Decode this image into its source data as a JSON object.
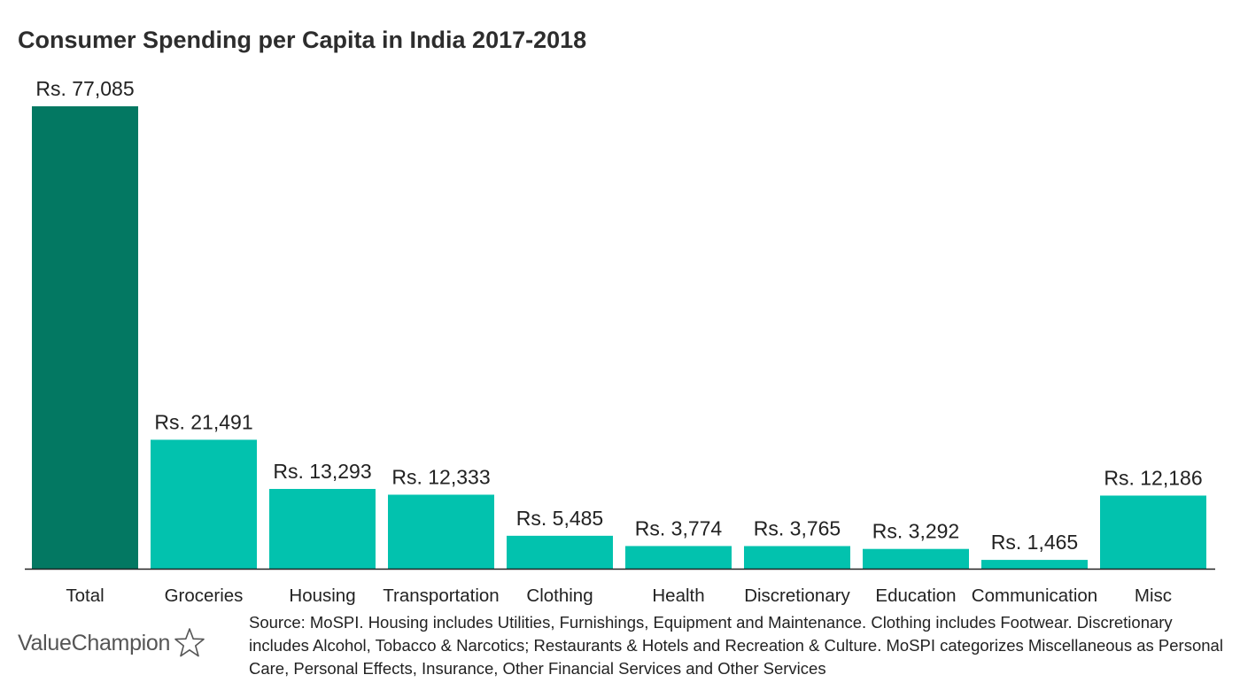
{
  "title": "Consumer Spending per Capita in India 2017-2018",
  "source_text": "Source: MoSPI. Housing includes Utilities, Furnishings, Equipment and Maintenance. Clothing includes Footwear. Discretionary includes Alcohol, Tobacco & Narcotics; Restaurants & Hotels and Recreation & Culture. MoSPI categorizes Miscellaneous as Personal Care, Personal Effects, Insurance, Other Financial Services and Other Services",
  "logo": {
    "text": "ValueChampion",
    "icon": "star-outline-icon"
  },
  "colors": {
    "total_bar": "#037862",
    "category_bar": "#02c2ae",
    "baseline": "#222222",
    "text": "#222222"
  },
  "chart_data": {
    "type": "bar",
    "title": "Consumer Spending per Capita in India 2017-2018",
    "categories": [
      "Total",
      "Groceries",
      "Housing",
      "Transportation",
      "Clothing",
      "Health",
      "Discretionary",
      "Education",
      "Communication",
      "Misc"
    ],
    "values": [
      77085,
      21491,
      13293,
      12333,
      5485,
      3774,
      3765,
      3292,
      1465,
      12186
    ],
    "data_labels": [
      "Rs. 77,085",
      "Rs. 21,491",
      "Rs. 13,293",
      "Rs. 12,333",
      "Rs. 5,485",
      "Rs. 3,774",
      "Rs. 3,765",
      "Rs. 3,292",
      "Rs. 1,465",
      "Rs. 12,186"
    ],
    "xlabel": "",
    "ylabel": "",
    "ylim": [
      0,
      77085
    ],
    "grid": false,
    "legend": "none"
  }
}
